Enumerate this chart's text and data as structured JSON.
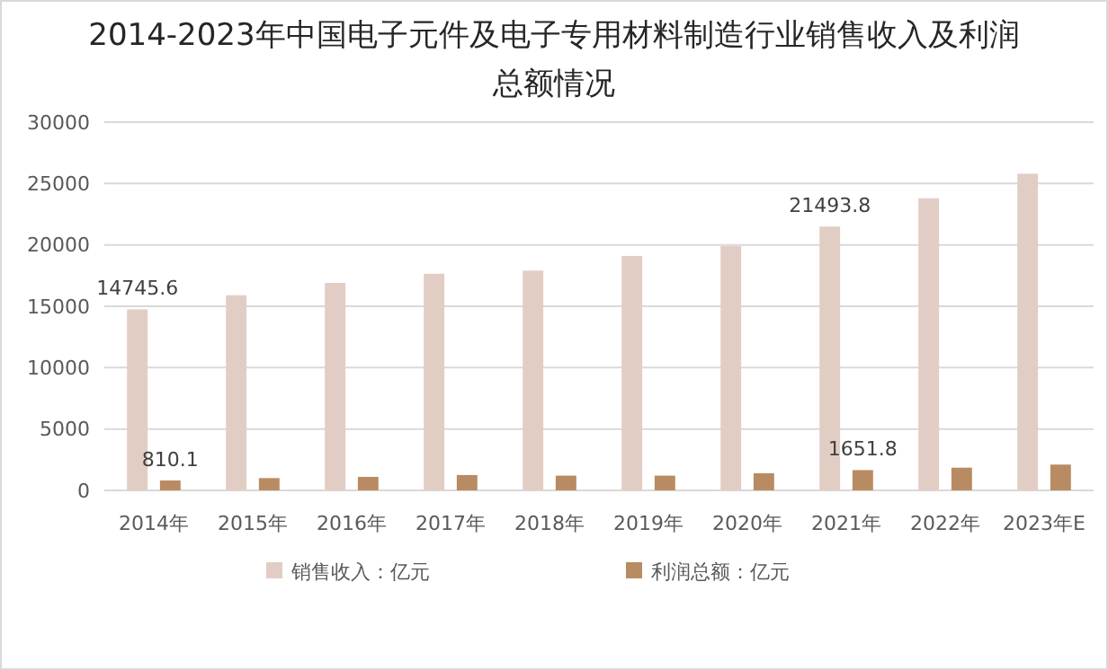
{
  "chart_data": {
    "type": "bar",
    "title": "2014-2023年中国电子元件及电子专用材料制造行业销售收入及利润总额情况",
    "categories": [
      "2014年",
      "2015年",
      "2016年",
      "2017年",
      "2018年",
      "2019年",
      "2020年",
      "2021年",
      "2022年",
      "2023年E"
    ],
    "series": [
      {
        "name": "销售收入：亿元",
        "color": "#e2cdc5",
        "values": [
          14745.6,
          15900,
          16900,
          17650,
          17900,
          19100,
          19900,
          21493.8,
          23800,
          25800
        ],
        "value_labels": [
          "14745.6",
          null,
          null,
          null,
          null,
          null,
          null,
          "21493.8",
          null,
          null
        ]
      },
      {
        "name": "利润总额：亿元",
        "color": "#b98b62",
        "values": [
          810.1,
          1000,
          1100,
          1250,
          1200,
          1200,
          1400,
          1651.8,
          1850,
          2100
        ],
        "value_labels": [
          "810.1",
          null,
          null,
          null,
          null,
          null,
          null,
          "1651.8",
          null,
          null
        ]
      }
    ],
    "ylim": [
      0,
      30000
    ],
    "yticks": [
      0,
      5000,
      10000,
      15000,
      20000,
      25000,
      30000
    ],
    "grid": "y",
    "legend": "bottom"
  }
}
